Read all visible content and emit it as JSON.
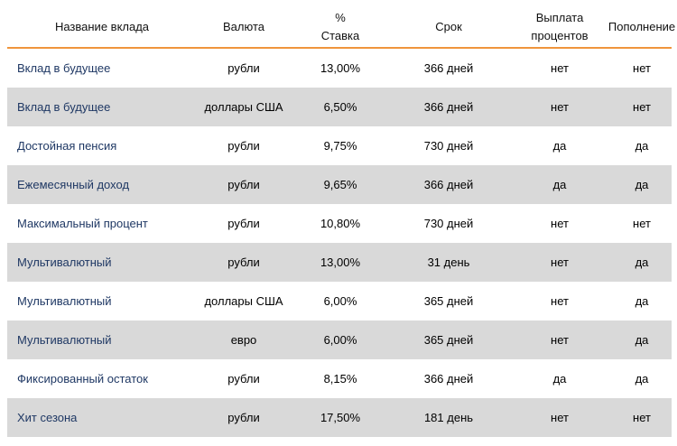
{
  "table": {
    "headers": {
      "name": "Название вклада",
      "currency": "Валюта",
      "rate_line1": "%",
      "rate_line2": "Ставка",
      "term": "Срок",
      "payout_line1": "Выплата",
      "payout_line2": "процентов",
      "replenish": "Пополнение"
    },
    "accent_color": "#f0953c",
    "stripe_color": "#d9d9d9",
    "rows": [
      {
        "name": "Вклад в будущее",
        "currency": "рубли",
        "rate": "13,00%",
        "term": "366 дней",
        "payout": "нет",
        "replenish": "нет"
      },
      {
        "name": "Вклад в будущее",
        "currency": "доллары США",
        "rate": "6,50%",
        "term": "366 дней",
        "payout": "нет",
        "replenish": "нет"
      },
      {
        "name": "Достойная пенсия",
        "currency": "рубли",
        "rate": "9,75%",
        "term": "730 дней",
        "payout": "да",
        "replenish": "да"
      },
      {
        "name": "Ежемесячный доход",
        "currency": "рубли",
        "rate": "9,65%",
        "term": "366 дней",
        "payout": "да",
        "replenish": "да"
      },
      {
        "name": "Максимальный процент",
        "currency": "рубли",
        "rate": "10,80%",
        "term": "730 дней",
        "payout": "нет",
        "replenish": "нет"
      },
      {
        "name": "Мультивалютный",
        "currency": "рубли",
        "rate": "13,00%",
        "term": "31 день",
        "payout": "нет",
        "replenish": "да"
      },
      {
        "name": "Мультивалютный",
        "currency": "доллары США",
        "rate": "6,00%",
        "term": "365 дней",
        "payout": "нет",
        "replenish": "да"
      },
      {
        "name": "Мультивалютный",
        "currency": "евро",
        "rate": "6,00%",
        "term": "365 дней",
        "payout": "нет",
        "replenish": "да"
      },
      {
        "name": "Фиксированный остаток",
        "currency": "рубли",
        "rate": "8,15%",
        "term": "366 дней",
        "payout": "да",
        "replenish": "да"
      },
      {
        "name": "Хит сезона",
        "currency": "рубли",
        "rate": "17,50%",
        "term": "181 день",
        "payout": "нет",
        "replenish": "нет"
      }
    ]
  }
}
